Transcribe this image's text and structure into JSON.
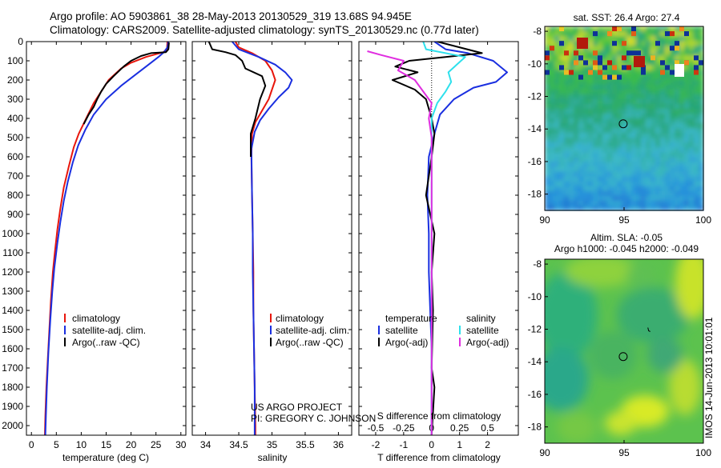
{
  "header": {
    "title_line1": "Argo profile: AO 5903861_38 28-May-2013 20130529_319 13.68S 94.945E",
    "title_line2": "Climatology: CARS2009. Satellite-adjusted climatology: synTS_20130529.nc (0.77d later)"
  },
  "colors": {
    "climatology": "#e8160c",
    "satellite": "#1a2fe0",
    "argo": "#000000",
    "satellite_salinity_diff": "#2ee0ec",
    "argo_salinity_diff": "#e02ee0"
  },
  "footer": {
    "project": "US ARGO PROJECT",
    "pi": "PI: GREGORY C. JOHNSON",
    "stamp": "IMOS 14-Jun-2013 10:01:01"
  },
  "chart_data": [
    {
      "type": "line",
      "name": "temperature profile",
      "xlabel": "temperature (deg C)",
      "ylabel": "",
      "xlim": [
        -1,
        31
      ],
      "ylim": [
        2050,
        0
      ],
      "xticks": [
        0,
        5,
        10,
        15,
        20,
        25,
        30
      ],
      "yticks": [
        0,
        100,
        200,
        300,
        400,
        500,
        600,
        700,
        800,
        900,
        1000,
        1100,
        1200,
        1300,
        1400,
        1500,
        1600,
        1700,
        1800,
        1900,
        2000
      ],
      "legend": [
        "climatology",
        "satellite-adj. clim.",
        "Argo(..raw -QC)"
      ],
      "series": [
        {
          "name": "climatology",
          "color_key": "climatology",
          "points": [
            [
              27.3,
              0
            ],
            [
              27.2,
              40
            ],
            [
              26.5,
              55
            ],
            [
              23,
              80
            ],
            [
              20,
              110
            ],
            [
              18,
              140
            ],
            [
              15.5,
              200
            ],
            [
              14,
              260
            ],
            [
              12.5,
              320
            ],
            [
              11,
              400
            ],
            [
              9.5,
              480
            ],
            [
              8.5,
              550
            ],
            [
              7.5,
              650
            ],
            [
              6.5,
              760
            ],
            [
              5.8,
              870
            ],
            [
              5.2,
              980
            ],
            [
              4.7,
              1100
            ],
            [
              4.3,
              1200
            ],
            [
              3.9,
              1350
            ],
            [
              3.6,
              1500
            ],
            [
              3.3,
              1650
            ],
            [
              3.0,
              1800
            ],
            [
              2.8,
              1950
            ],
            [
              2.7,
              2050
            ]
          ]
        },
        {
          "name": "satellite-adj. clim.",
          "color_key": "satellite",
          "points": [
            [
              27.5,
              0
            ],
            [
              27.3,
              30
            ],
            [
              26.6,
              55
            ],
            [
              25.5,
              80
            ],
            [
              23.5,
              120
            ],
            [
              21,
              170
            ],
            [
              18,
              230
            ],
            [
              15,
              300
            ],
            [
              12.5,
              380
            ],
            [
              10.8,
              460
            ],
            [
              9.4,
              540
            ],
            [
              8.3,
              630
            ],
            [
              7.3,
              730
            ],
            [
              6.5,
              830
            ],
            [
              5.8,
              940
            ],
            [
              5.2,
              1050
            ],
            [
              4.6,
              1180
            ],
            [
              4.2,
              1300
            ],
            [
              3.8,
              1450
            ],
            [
              3.4,
              1620
            ],
            [
              3.1,
              1800
            ],
            [
              2.9,
              1950
            ],
            [
              2.8,
              2050
            ]
          ]
        },
        {
          "name": "Argo(..raw -QC)",
          "color_key": "argo",
          "points": [
            [
              27.6,
              5
            ],
            [
              27.5,
              40
            ],
            [
              27,
              55
            ],
            [
              24,
              60
            ],
            [
              22,
              75
            ],
            [
              20,
              100
            ],
            [
              18.5,
              130
            ],
            [
              16.5,
              180
            ],
            [
              15,
              220
            ],
            [
              14,
              260
            ],
            [
              13.2,
              300
            ],
            [
              12.5,
              340
            ],
            [
              11.5,
              380
            ],
            [
              10.5,
              430
            ]
          ]
        }
      ]
    },
    {
      "type": "line",
      "name": "salinity profile",
      "xlabel": "salinity",
      "xlim": [
        33.8,
        36.2
      ],
      "ylim": [
        2050,
        0
      ],
      "xticks": [
        34,
        34.5,
        35,
        35.5,
        36
      ],
      "legend": [
        "climatology",
        "satellite-adj. clim.",
        "Argo(..raw -QC)"
      ],
      "series": [
        {
          "name": "climatology",
          "color_key": "climatology",
          "points": [
            [
              34.45,
              0
            ],
            [
              34.5,
              30
            ],
            [
              34.7,
              60
            ],
            [
              34.9,
              100
            ],
            [
              35.0,
              150
            ],
            [
              35.05,
              200
            ],
            [
              35.0,
              250
            ],
            [
              34.95,
              300
            ],
            [
              34.85,
              360
            ],
            [
              34.75,
              420
            ],
            [
              34.7,
              480
            ],
            [
              34.69,
              600
            ],
            [
              34.7,
              800
            ],
            [
              34.71,
              1000
            ],
            [
              34.72,
              1200
            ],
            [
              34.72,
              1400
            ],
            [
              34.73,
              1600
            ],
            [
              34.74,
              1800
            ],
            [
              34.75,
              2000
            ],
            [
              34.75,
              2050
            ]
          ]
        },
        {
          "name": "satellite-adj. clim.",
          "color_key": "satellite",
          "points": [
            [
              34.4,
              0
            ],
            [
              34.5,
              40
            ],
            [
              34.8,
              80
            ],
            [
              35.05,
              120
            ],
            [
              35.2,
              160
            ],
            [
              35.3,
              200
            ],
            [
              35.25,
              240
            ],
            [
              35.1,
              290
            ],
            [
              34.95,
              350
            ],
            [
              34.82,
              410
            ],
            [
              34.74,
              470
            ],
            [
              34.69,
              560
            ],
            [
              34.7,
              800
            ],
            [
              34.71,
              1000
            ],
            [
              34.71,
              1200
            ],
            [
              34.72,
              1400
            ],
            [
              34.73,
              1600
            ],
            [
              34.74,
              1800
            ],
            [
              34.74,
              2000
            ],
            [
              34.74,
              2050
            ]
          ]
        },
        {
          "name": "Argo(..raw -QC)",
          "color_key": "argo",
          "points": [
            [
              34.05,
              0
            ],
            [
              34.1,
              40
            ],
            [
              34.3,
              55
            ],
            [
              34.45,
              70
            ],
            [
              34.55,
              100
            ],
            [
              34.6,
              140
            ],
            [
              34.85,
              180
            ],
            [
              34.9,
              230
            ],
            [
              34.82,
              300
            ],
            [
              34.75,
              400
            ],
            [
              34.68,
              480
            ],
            [
              34.68,
              600
            ]
          ]
        }
      ]
    },
    {
      "type": "line",
      "name": "difference from climatology",
      "xlabel": "T difference from climatology",
      "xlabel_top": "S difference from climatology",
      "xlim": [
        -2.6,
        3.1
      ],
      "ylim": [
        2050,
        0
      ],
      "xticks": [
        -2,
        -1,
        0,
        1,
        2
      ],
      "xticks_s": [
        -0.5,
        -0.25,
        0,
        0.25,
        0.5
      ],
      "xtick_labels_s": [
        "-0.5",
        "-0.25",
        "0",
        "0.25",
        "0.5"
      ],
      "legend_temperature": [
        "temperature",
        "satellite",
        "Argo(-adj)"
      ],
      "legend_salinity": [
        "salinity",
        "satellite",
        "Argo(-adj)"
      ],
      "series": [
        {
          "name": "temperature satellite",
          "color_key": "satellite",
          "points": [
            [
              0.1,
              0
            ],
            [
              0.5,
              40
            ],
            [
              1.3,
              60
            ],
            [
              2.2,
              100
            ],
            [
              2.7,
              160
            ],
            [
              2.3,
              210
            ],
            [
              1.5,
              240
            ],
            [
              0.8,
              300
            ],
            [
              0.3,
              380
            ],
            [
              0.1,
              480
            ],
            [
              -0.1,
              600
            ],
            [
              -0.15,
              800
            ],
            [
              -0.1,
              1000
            ],
            [
              -0.1,
              1200
            ],
            [
              -0.05,
              1400
            ],
            [
              0,
              1600
            ],
            [
              0,
              1800
            ],
            [
              0,
              2050
            ]
          ]
        },
        {
          "name": "temperature Argo(-adj)",
          "color_key": "argo",
          "points": [
            [
              0.2,
              0
            ],
            [
              1.8,
              60
            ],
            [
              0.5,
              80
            ],
            [
              -0.8,
              100
            ],
            [
              -1.3,
              130
            ],
            [
              -0.5,
              160
            ],
            [
              -1.4,
              200
            ],
            [
              -0.6,
              250
            ],
            [
              -0.2,
              300
            ],
            [
              0,
              400
            ],
            [
              0.1,
              480
            ],
            [
              0,
              600
            ],
            [
              -0.2,
              800
            ],
            [
              0.1,
              1000
            ],
            [
              0,
              1200
            ],
            [
              0.05,
              1400
            ],
            [
              0,
              1700
            ],
            [
              0.1,
              1800
            ],
            [
              0,
              2050
            ]
          ]
        },
        {
          "name": "salinity satellite",
          "color_key": "satellite_salinity_diff",
          "points": [
            [
              -0.3,
              0
            ],
            [
              -0.2,
              40
            ],
            [
              1.2,
              80
            ],
            [
              0.9,
              120
            ],
            [
              0.6,
              160
            ],
            [
              0.7,
              210
            ],
            [
              0.5,
              260
            ],
            [
              0.2,
              320
            ],
            [
              0,
              400
            ],
            [
              0,
              2050
            ]
          ]
        },
        {
          "name": "salinity Argo(-adj)",
          "color_key": "argo_salinity_diff",
          "points": [
            [
              -2.3,
              50
            ],
            [
              -1.8,
              70
            ],
            [
              -1.0,
              100
            ],
            [
              -1.2,
              150
            ],
            [
              -0.6,
              200
            ],
            [
              -0.3,
              260
            ],
            [
              0,
              320
            ],
            [
              -0.1,
              400
            ],
            [
              0,
              500
            ],
            [
              0,
              2050
            ]
          ]
        }
      ]
    },
    {
      "type": "heatmap",
      "name": "sea surface temperature map",
      "title": "sat. SST: 26.4  Argo: 27.4",
      "xlim": [
        90,
        100
      ],
      "ylim": [
        -19,
        -7.7
      ],
      "xticks": [
        90,
        95,
        100
      ],
      "yticks": [
        -8,
        -10,
        -12,
        -14,
        -16,
        -18
      ],
      "marker": {
        "lon": 94.945,
        "lat": -13.68
      }
    },
    {
      "type": "heatmap",
      "name": "sea level anomaly map",
      "title_line1": "Altim. SLA: -0.05",
      "title_line2": "Argo h1000: -0.045 h2000: -0.049",
      "xlim": [
        90,
        100
      ],
      "ylim": [
        -19,
        -7.7
      ],
      "xticks": [
        90,
        95,
        100
      ],
      "yticks": [
        -8,
        -10,
        -12,
        -14,
        -16,
        -18
      ],
      "marker": {
        "lon": 94.945,
        "lat": -13.68
      }
    }
  ]
}
